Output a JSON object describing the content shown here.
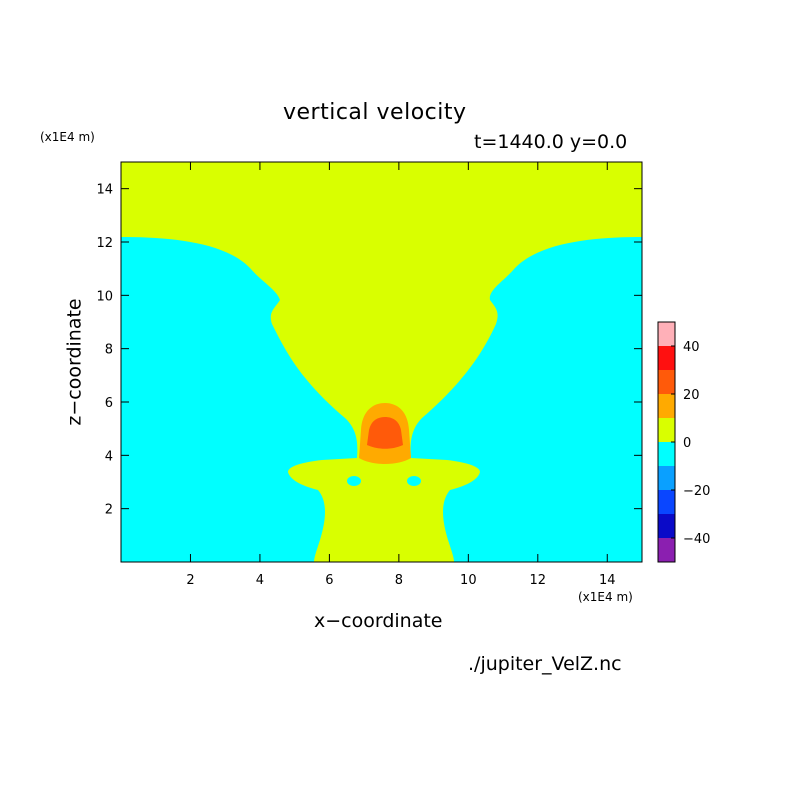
{
  "chart_data": {
    "type": "heatmap",
    "title": "vertical velocity",
    "subtitle": "t=1440.0 y=0.0",
    "xlabel": "x−coordinate",
    "ylabel": "z−coordinate",
    "x_unit": "(x1E4 m)",
    "y_unit": "(x1E4 m)",
    "xlim": [
      0,
      15
    ],
    "ylim": [
      0,
      15
    ],
    "x_ticks": [
      2,
      4,
      6,
      8,
      10,
      12,
      14
    ],
    "y_ticks": [
      2,
      4,
      6,
      8,
      10,
      12,
      14
    ],
    "colorbar": {
      "levels": [
        -50,
        -40,
        -30,
        -20,
        -10,
        0,
        10,
        20,
        30,
        40,
        50
      ],
      "tick_labels": [
        40,
        20,
        0,
        -20,
        -40
      ],
      "tick_label_text": [
        "40",
        "20",
        "0",
        "−20",
        "−40"
      ],
      "colors": [
        "#8b1fb0",
        "#0a0ac8",
        "#0a46ff",
        "#0aa0ff",
        "#00ffff",
        "#d9ff00",
        "#ffaa00",
        "#ff5a0a",
        "#ff1010",
        "#ffb0b8"
      ]
    },
    "regions": [
      {
        "name": "background",
        "level": "0 to 10",
        "color": "#d9ff00"
      },
      {
        "name": "lower-left-downdraft",
        "level": "-10 to 0",
        "color": "#00ffff"
      },
      {
        "name": "lower-right-downdraft",
        "level": "-10 to 0",
        "color": "#00ffff"
      },
      {
        "name": "updraft-outer",
        "level": "10 to 20",
        "color": "#ffaa00"
      },
      {
        "name": "updraft-core",
        "level": "20 to 30",
        "color": "#ff5a0a"
      }
    ]
  },
  "footer": {
    "source": "./jupiter_VelZ.nc"
  }
}
